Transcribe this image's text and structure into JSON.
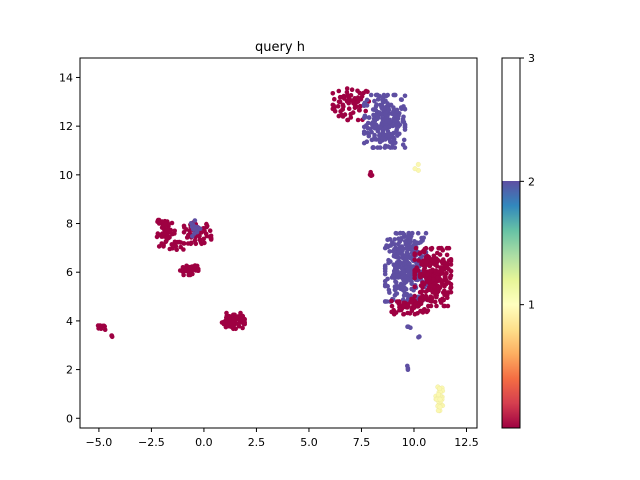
{
  "chart_data": {
    "type": "scatter",
    "title": "query h",
    "xlim": [
      -5.9,
      13.0
    ],
    "ylim": [
      -0.4,
      14.8
    ],
    "xticks": [
      -5.0,
      -2.5,
      0.0,
      2.5,
      5.0,
      7.5,
      10.0,
      12.5
    ],
    "xtick_labels": [
      "−5.0",
      "−2.5",
      "0.0",
      "2.5",
      "5.0",
      "7.5",
      "10.0",
      "12.5"
    ],
    "yticks": [
      0,
      2,
      4,
      6,
      8,
      10,
      12,
      14
    ],
    "ytick_labels": [
      "0",
      "2",
      "4",
      "6",
      "8",
      "10",
      "12",
      "14"
    ],
    "colorbar": {
      "colormap": "Spectral",
      "range": [
        0,
        3
      ],
      "ticks": [
        1,
        2,
        3
      ],
      "tick_labels": [
        "1",
        "2",
        "3"
      ]
    },
    "clusters": [
      {
        "value": 0,
        "center": [
          7.0,
          12.9
        ],
        "spread": [
          0.8,
          0.6
        ],
        "count": 70
      },
      {
        "value": 2,
        "center": [
          8.6,
          12.2
        ],
        "spread": [
          0.9,
          1.0
        ],
        "count": 240
      },
      {
        "value": 0,
        "center": [
          7.9,
          10.0
        ],
        "spread": [
          0.1,
          0.1
        ],
        "count": 4
      },
      {
        "value": 1,
        "center": [
          10.1,
          10.4
        ],
        "spread": [
          0.1,
          0.2
        ],
        "count": 3
      },
      {
        "value": 2,
        "center": [
          9.6,
          6.2
        ],
        "spread": [
          0.9,
          1.3
        ],
        "count": 320
      },
      {
        "value": 0,
        "center": [
          10.9,
          5.8
        ],
        "spread": [
          0.8,
          1.1
        ],
        "count": 260
      },
      {
        "value": 0,
        "center": [
          9.8,
          4.6
        ],
        "spread": [
          0.8,
          0.3
        ],
        "count": 60
      },
      {
        "value": 2,
        "center": [
          9.8,
          3.75
        ],
        "spread": [
          0.1,
          0.05
        ],
        "count": 3
      },
      {
        "value": 2,
        "center": [
          10.2,
          3.3
        ],
        "spread": [
          0.1,
          0.1
        ],
        "count": 2
      },
      {
        "value": 2,
        "center": [
          9.7,
          2.1
        ],
        "spread": [
          0.05,
          0.1
        ],
        "count": 3
      },
      {
        "value": 1,
        "center": [
          11.2,
          0.8
        ],
        "spread": [
          0.15,
          0.45
        ],
        "count": 45
      },
      {
        "value": 0,
        "center": [
          -1.8,
          7.6
        ],
        "spread": [
          0.4,
          0.5
        ],
        "count": 55
      },
      {
        "value": 0,
        "center": [
          -0.3,
          7.6
        ],
        "spread": [
          0.6,
          0.4
        ],
        "count": 60
      },
      {
        "value": 2,
        "center": [
          -0.4,
          7.8
        ],
        "spread": [
          0.2,
          0.3
        ],
        "count": 15
      },
      {
        "value": 0,
        "center": [
          -0.7,
          6.1
        ],
        "spread": [
          0.4,
          0.2
        ],
        "count": 35
      },
      {
        "value": 0,
        "center": [
          -1.3,
          7.1
        ],
        "spread": [
          0.3,
          0.2
        ],
        "count": 10
      },
      {
        "value": 0,
        "center": [
          1.4,
          4.0
        ],
        "spread": [
          0.5,
          0.3
        ],
        "count": 70
      },
      {
        "value": 0,
        "center": [
          -4.9,
          3.7
        ],
        "spread": [
          0.2,
          0.1
        ],
        "count": 10
      },
      {
        "value": 0,
        "center": [
          -4.4,
          3.4
        ],
        "spread": [
          0.05,
          0.05
        ],
        "count": 3
      }
    ]
  }
}
